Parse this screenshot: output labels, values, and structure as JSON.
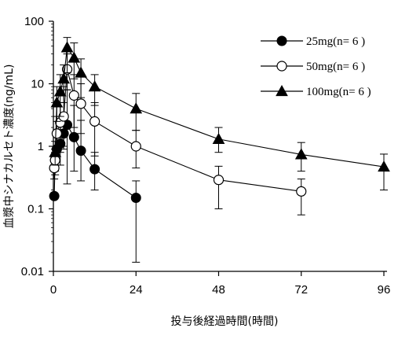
{
  "chart_data": {
    "type": "line",
    "xlabel": "投与後経過時間(時間)",
    "ylabel": "血漿中シナカルセト濃度(ng/mL)",
    "y_scale": "log",
    "xlim": [
      0,
      96
    ],
    "ylim": [
      0.01,
      100
    ],
    "x_ticks": [
      0,
      24,
      48,
      72,
      96
    ],
    "x_tick_labels": [
      "0",
      "24",
      "48",
      "72",
      "96"
    ],
    "y_ticks": [
      0.01,
      0.1,
      1,
      10,
      100
    ],
    "y_tick_labels": [
      "0.01",
      "0.1",
      "1",
      "10",
      "100"
    ],
    "grid": false,
    "legend_position": "top-right",
    "series": [
      {
        "name": "25mg(n= 6 )",
        "marker": "filled-circle",
        "color": "#000000",
        "points": [
          {
            "x": 0.25,
            "y": 0.16,
            "lo": 0.16,
            "hi": 0.16
          },
          {
            "x": 0.5,
            "y": 0.6,
            "lo": 0.35,
            "hi": 1.0
          },
          {
            "x": 1,
            "y": 0.9,
            "lo": 0.5,
            "hi": 1.6
          },
          {
            "x": 2,
            "y": 1.1,
            "lo": 0.5,
            "hi": 2.5
          },
          {
            "x": 3,
            "y": 1.6,
            "lo": 0.9,
            "hi": 3.0
          },
          {
            "x": 4,
            "y": 2.2,
            "lo": 0.25,
            "hi": 8.0
          },
          {
            "x": 6,
            "y": 1.4,
            "lo": 0.4,
            "hi": 4.5
          },
          {
            "x": 8,
            "y": 0.85,
            "lo": 0.28,
            "hi": 2.6
          },
          {
            "x": 12,
            "y": 0.43,
            "lo": 0.2,
            "hi": 0.8
          },
          {
            "x": 24,
            "y": 0.15,
            "lo": 0.014,
            "hi": 0.28
          }
        ]
      },
      {
        "name": "50mg(n= 6 )",
        "marker": "open-circle",
        "color": "#000000",
        "points": [
          {
            "x": 0.25,
            "y": 0.45,
            "lo": 0.3,
            "hi": 0.65
          },
          {
            "x": 0.5,
            "y": 0.6,
            "lo": 0.4,
            "hi": 0.9
          },
          {
            "x": 1,
            "y": 1.6,
            "lo": 0.5,
            "hi": 3.0
          },
          {
            "x": 2,
            "y": 2.4,
            "lo": 0.8,
            "hi": 5.0
          },
          {
            "x": 3,
            "y": 3.0,
            "lo": 1.0,
            "hi": 9.0
          },
          {
            "x": 4,
            "y": 17,
            "lo": 8,
            "hi": 30
          },
          {
            "x": 6,
            "y": 6.5,
            "lo": 2.0,
            "hi": 14
          },
          {
            "x": 8,
            "y": 4.8,
            "lo": 1.6,
            "hi": 10
          },
          {
            "x": 12,
            "y": 2.5,
            "lo": 0.7,
            "hi": 5.0
          },
          {
            "x": 24,
            "y": 1.0,
            "lo": 0.45,
            "hi": 1.8
          },
          {
            "x": 48,
            "y": 0.29,
            "lo": 0.1,
            "hi": 0.48
          },
          {
            "x": 72,
            "y": 0.19,
            "lo": 0.08,
            "hi": 0.3
          }
        ]
      },
      {
        "name": "100mg(n= 6 )",
        "marker": "filled-triangle",
        "color": "#000000",
        "points": [
          {
            "x": 0.5,
            "y": 0.8,
            "lo": 0.5,
            "hi": 1.2
          },
          {
            "x": 1,
            "y": 5.0,
            "lo": 2.5,
            "hi": 9.0
          },
          {
            "x": 2,
            "y": 7.5,
            "lo": 3.0,
            "hi": 14
          },
          {
            "x": 3,
            "y": 12,
            "lo": 5,
            "hi": 20
          },
          {
            "x": 4,
            "y": 38,
            "lo": 15,
            "hi": 55
          },
          {
            "x": 6,
            "y": 26,
            "lo": 12,
            "hi": 45
          },
          {
            "x": 8,
            "y": 15,
            "lo": 6,
            "hi": 25
          },
          {
            "x": 12,
            "y": 9.0,
            "lo": 4.5,
            "hi": 14
          },
          {
            "x": 24,
            "y": 4.0,
            "lo": 1.8,
            "hi": 7.0
          },
          {
            "x": 48,
            "y": 1.3,
            "lo": 0.8,
            "hi": 2.0
          },
          {
            "x": 72,
            "y": 0.74,
            "lo": 0.4,
            "hi": 1.15
          },
          {
            "x": 96,
            "y": 0.47,
            "lo": 0.2,
            "hi": 0.75
          }
        ]
      }
    ]
  }
}
